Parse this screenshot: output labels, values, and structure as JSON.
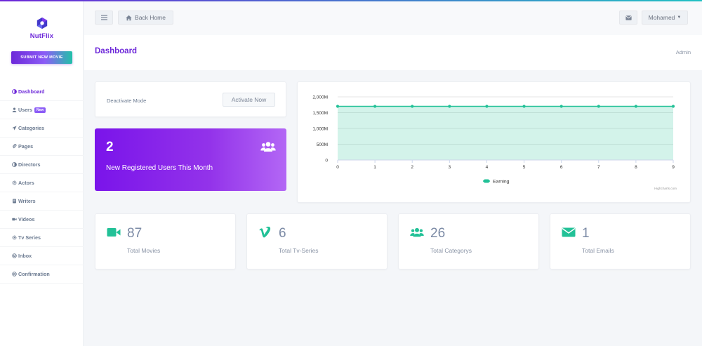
{
  "brand": {
    "name": "NutFlix",
    "submit_label": "SUBMIT NEW MOVIE"
  },
  "sidebar": {
    "items": [
      {
        "label": "Dashboard",
        "icon": "dashboard-icon",
        "active": true
      },
      {
        "label": "Users",
        "icon": "user-icon",
        "badge": "New"
      },
      {
        "label": "Categories",
        "icon": "send-icon"
      },
      {
        "label": "Pages",
        "icon": "paperclip-icon"
      },
      {
        "label": "Directors",
        "icon": "dashboard-icon"
      },
      {
        "label": "Actors",
        "icon": "gear-icon"
      },
      {
        "label": "Writers",
        "icon": "book-icon"
      },
      {
        "label": "Videos",
        "icon": "video-icon"
      },
      {
        "label": "Tv Series",
        "icon": "gear-icon"
      },
      {
        "label": "Inbox",
        "icon": "at-icon"
      },
      {
        "label": "Confirmation",
        "icon": "at-icon"
      }
    ]
  },
  "header": {
    "back_label": "Back Home",
    "user_name": "Mohamed"
  },
  "page": {
    "title": "Dashboard",
    "breadcrumb": "Admin"
  },
  "deactivate": {
    "label": "Deactivate Mode",
    "button": "Activate Now"
  },
  "new_users": {
    "count": "2",
    "label": "New Registered Users This Month"
  },
  "chart_data": {
    "type": "area",
    "x": [
      0,
      1,
      2,
      3,
      4,
      5,
      6,
      7,
      8,
      9
    ],
    "series": [
      {
        "name": "Earning",
        "values": [
          1700000000,
          1700000000,
          1700000000,
          1700000000,
          1700000000,
          1700000000,
          1700000000,
          1700000000,
          1700000000,
          1700000000
        ]
      }
    ],
    "ytick_labels": [
      "0",
      "500M",
      "1,000M",
      "1,500M",
      "2,000M"
    ],
    "ylim": [
      0,
      2000000000
    ],
    "credit": "Highcharts.com",
    "grid": true,
    "legend": "bottom-center",
    "color": "#22c197"
  },
  "stats": [
    {
      "value": "87",
      "label": "Total Movies",
      "icon": "video-camera-icon"
    },
    {
      "value": "6",
      "label": "Total Tv-Series",
      "icon": "vimeo-icon"
    },
    {
      "value": "26",
      "label": "Total Categorys",
      "icon": "users-icon"
    },
    {
      "value": "1",
      "label": "Total Emails",
      "icon": "envelope-icon"
    }
  ],
  "colors": {
    "accent": "#6d28d9",
    "green": "#22c197",
    "purple_card": "#8b2ff0"
  }
}
